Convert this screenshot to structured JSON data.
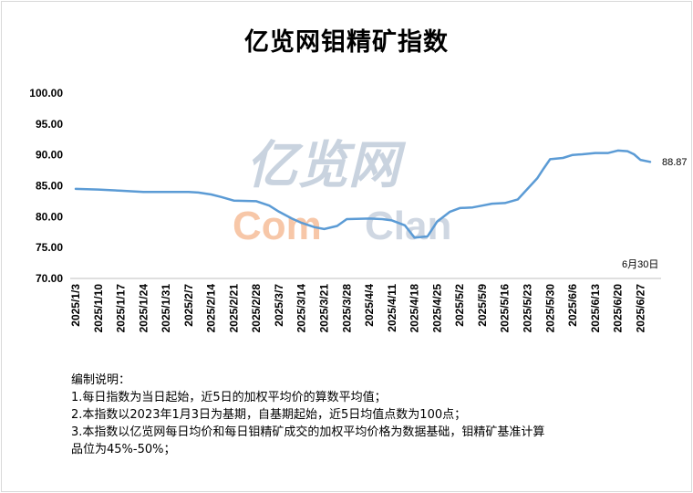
{
  "chart_data": {
    "type": "line",
    "title": "亿览网钼精矿指数",
    "xlabel": "",
    "ylabel": "",
    "ylim": [
      70,
      100
    ],
    "yticks": [
      "100.00",
      "95.00",
      "90.00",
      "85.00",
      "80.00",
      "75.00",
      "70.00"
    ],
    "x_ticks": [
      "2025/1/3",
      "2025/1/10",
      "2025/1/17",
      "2025/1/24",
      "2025/1/31",
      "2025/2/7",
      "2025/2/14",
      "2025/2/21",
      "2025/2/28",
      "2025/3/7",
      "2025/3/14",
      "2025/3/21",
      "2025/3/28",
      "2025/4/4",
      "2025/4/11",
      "2025/4/18",
      "2025/4/25",
      "2025/5/2",
      "2025/5/9",
      "2025/5/16",
      "2025/5/23",
      "2025/5/30",
      "2025/6/6",
      "2025/6/13",
      "2025/6/20",
      "2025/6/27"
    ],
    "grid": false,
    "line_color": "#5b9bd5",
    "series": [
      {
        "points": [
          [
            "2025/1/3",
            84.5
          ],
          [
            "2025/1/10",
            84.4
          ],
          [
            "2025/1/17",
            84.2
          ],
          [
            "2025/1/24",
            84.0
          ],
          [
            "2025/1/31",
            84.0
          ],
          [
            "2025/2/7",
            84.0
          ],
          [
            "2025/2/10",
            83.9
          ],
          [
            "2025/2/14",
            83.6
          ],
          [
            "2025/2/17",
            83.2
          ],
          [
            "2025/2/21",
            82.6
          ],
          [
            "2025/2/28",
            82.5
          ],
          [
            "2025/3/4",
            81.8
          ],
          [
            "2025/3/7",
            80.8
          ],
          [
            "2025/3/11",
            79.7
          ],
          [
            "2025/3/14",
            79.0
          ],
          [
            "2025/3/18",
            78.3
          ],
          [
            "2025/3/21",
            78.0
          ],
          [
            "2025/3/25",
            78.5
          ],
          [
            "2025/3/28",
            79.6
          ],
          [
            "2025/4/4",
            79.7
          ],
          [
            "2025/4/8",
            79.6
          ],
          [
            "2025/4/11",
            79.4
          ],
          [
            "2025/4/15",
            78.6
          ],
          [
            "2025/4/18",
            76.6
          ],
          [
            "2025/4/22",
            76.8
          ],
          [
            "2025/4/25",
            79.2
          ],
          [
            "2025/4/29",
            80.8
          ],
          [
            "2025/5/2",
            81.4
          ],
          [
            "2025/5/6",
            81.5
          ],
          [
            "2025/5/9",
            81.8
          ],
          [
            "2025/5/12",
            82.1
          ],
          [
            "2025/5/16",
            82.2
          ],
          [
            "2025/5/20",
            82.8
          ],
          [
            "2025/5/23",
            84.5
          ],
          [
            "2025/5/26",
            86.2
          ],
          [
            "2025/5/28",
            87.8
          ],
          [
            "2025/5/30",
            89.3
          ],
          [
            "2025/6/3",
            89.5
          ],
          [
            "2025/6/6",
            90.0
          ],
          [
            "2025/6/9",
            90.1
          ],
          [
            "2025/6/13",
            90.3
          ],
          [
            "2025/6/17",
            90.3
          ],
          [
            "2025/6/20",
            90.7
          ],
          [
            "2025/6/23",
            90.6
          ],
          [
            "2025/6/25",
            90.1
          ],
          [
            "2025/6/27",
            89.2
          ],
          [
            "2025/6/30",
            88.87
          ]
        ]
      }
    ],
    "annotations": {
      "last_value": "88.87",
      "last_date": "6月30日"
    }
  },
  "watermark": {
    "line1": "亿览网",
    "line2_a": "Com",
    "line2_b": "Clan"
  },
  "notes": {
    "heading": "编制说明：",
    "items": [
      "1.每日指数为当日起始，近5日的加权平均价的算数平均值；",
      "2.本指数以2023年1月3日为基期，自基期起始，近5日均值点数为100点；",
      "3.本指数以亿览网每日均价和每日钼精矿成交的加权平均价格为数据基础，钼精矿基准计算",
      "品位为45%-50%；"
    ]
  }
}
